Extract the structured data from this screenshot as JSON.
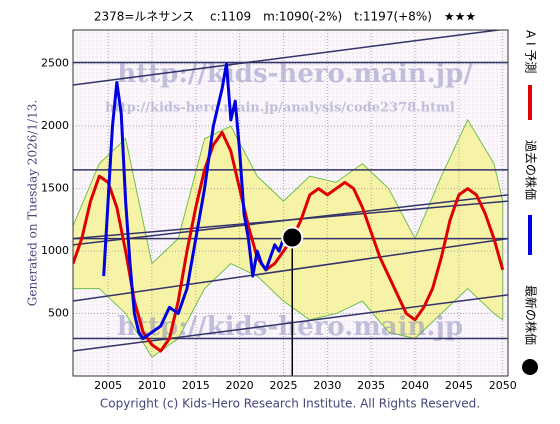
{
  "chart_data": {
    "type": "line",
    "title": "2378=ルネサンス　 c:1109　m:1090(-2%)　t:1197(+8%)　★★★",
    "generated": "Generated on Tuesday 2026/1/13.",
    "copyright": "Copyright (c) Kids-Hero Research Institute. All Rights Reserved.",
    "watermarks": [
      "http://kids-hero.main.jp/",
      "http://kids-hero.main.jp/analysis/code2378.html",
      "http://kids-hero.main.jp"
    ],
    "xlim": [
      2001,
      2050.6
    ],
    "ylim": [
      0,
      2770
    ],
    "xticks": [
      2005,
      2010,
      2015,
      2020,
      2025,
      2030,
      2035,
      2040,
      2045,
      2050
    ],
    "yticks": [
      500,
      1000,
      1500,
      2000,
      2500
    ],
    "grid": true,
    "band": {
      "color": "#f6f3a6",
      "x": [
        2001,
        2004,
        2007,
        2010,
        2013,
        2016,
        2019,
        2022,
        2025,
        2028,
        2031,
        2034,
        2037,
        2040,
        2043,
        2046,
        2049,
        2050
      ],
      "upper": [
        1200,
        1700,
        1900,
        900,
        1100,
        1900,
        2000,
        1600,
        1400,
        1600,
        1550,
        1700,
        1500,
        1100,
        1600,
        2050,
        1700,
        1400
      ],
      "lower": [
        700,
        700,
        500,
        150,
        300,
        700,
        900,
        800,
        600,
        450,
        500,
        600,
        350,
        300,
        500,
        700,
        500,
        450
      ]
    },
    "trend_lines": [
      [
        2510,
        2510
      ],
      [
        1650,
        1650
      ],
      [
        1100,
        1100
      ],
      [
        300,
        300
      ],
      [
        2330,
        2780
      ],
      [
        1100,
        1400
      ],
      [
        600,
        1100
      ],
      [
        200,
        650
      ],
      [
        1050,
        1450
      ]
    ],
    "series": [
      {
        "name": "A I 予測",
        "color": "#e00000",
        "x": [
          2001,
          2002,
          2003,
          2004,
          2005,
          2006,
          2007,
          2008,
          2009,
          2010,
          2011,
          2012,
          2013,
          2014,
          2015,
          2016,
          2017,
          2018,
          2019,
          2020,
          2021,
          2022,
          2023,
          2024,
          2025,
          2026,
          2027,
          2028,
          2029,
          2030,
          2031,
          2032,
          2033,
          2034,
          2035,
          2036,
          2037,
          2038,
          2039,
          2040,
          2041,
          2042,
          2043,
          2044,
          2045,
          2046,
          2047,
          2048,
          2049,
          2050
        ],
        "values": [
          900,
          1100,
          1400,
          1600,
          1550,
          1350,
          1000,
          600,
          350,
          250,
          200,
          300,
          600,
          1000,
          1350,
          1650,
          1850,
          1950,
          1800,
          1500,
          1200,
          950,
          850,
          900,
          1000,
          1100,
          1250,
          1450,
          1500,
          1450,
          1500,
          1550,
          1500,
          1350,
          1150,
          950,
          800,
          650,
          500,
          450,
          550,
          700,
          950,
          1250,
          1450,
          1500,
          1450,
          1300,
          1100,
          850
        ]
      },
      {
        "name": "過去の株価",
        "color": "#0000e0",
        "x": [
          2004.5,
          2005,
          2005.5,
          2006,
          2006.5,
          2007,
          2007.5,
          2008,
          2008.5,
          2009,
          2010,
          2011,
          2012,
          2013,
          2014,
          2015,
          2016,
          2017,
          2018,
          2018.5,
          2019,
          2019.5,
          2020,
          2020.5,
          2021,
          2021.5,
          2022,
          2022.5,
          2023,
          2023.5,
          2024,
          2024.5,
          2025
        ],
        "values": [
          800,
          1400,
          2000,
          2350,
          2100,
          1400,
          900,
          500,
          350,
          300,
          350,
          400,
          550,
          500,
          700,
          1100,
          1500,
          2000,
          2300,
          2500,
          2050,
          2200,
          1800,
          1300,
          1100,
          800,
          1000,
          900,
          850,
          950,
          1050,
          1000,
          1100
        ]
      }
    ],
    "latest": {
      "name": "最新の株価",
      "x": 2026,
      "value": 1109,
      "color": "#000000"
    }
  }
}
